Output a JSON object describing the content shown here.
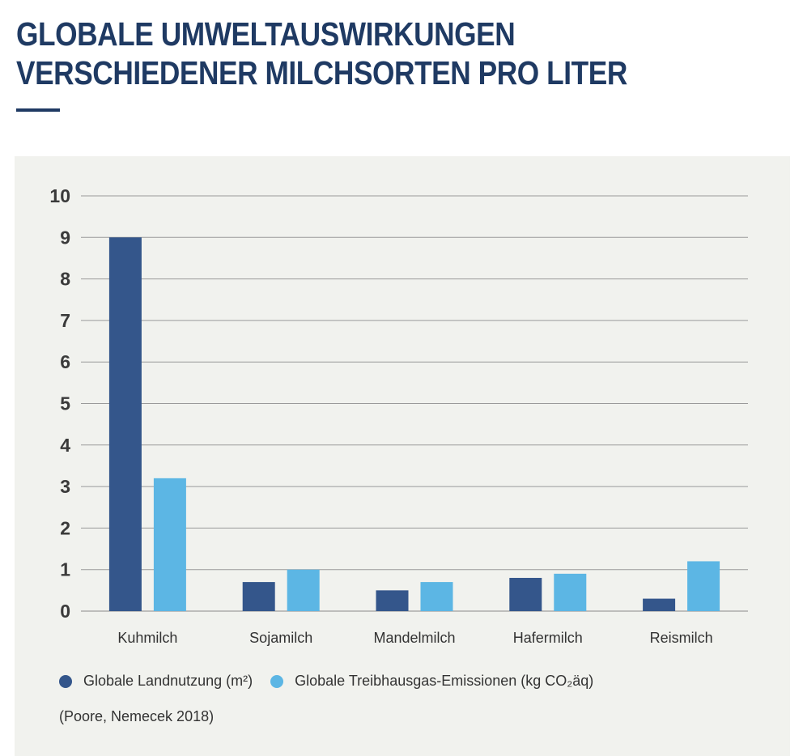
{
  "title": {
    "line1": "GLOBALE UMWELTAUSWIRKUNGEN",
    "line2": "VERSCHIEDENER MILCHSORTEN PRO LITER"
  },
  "colors": {
    "title": "#1f3a63",
    "series1": "#34568b",
    "series2": "#5cb6e4",
    "panel": "#f1f2ee"
  },
  "chart_data": {
    "type": "bar",
    "categories": [
      "Kuhmilch",
      "Sojamilch",
      "Mandelmilch",
      "Hafermilch",
      "Reismilch"
    ],
    "series": [
      {
        "name": "Globale Landnutzung (m²)",
        "values": [
          9.0,
          0.7,
          0.5,
          0.8,
          0.3
        ]
      },
      {
        "name": "Globale Treibhausgas-Emissionen (kg CO₂äq)",
        "values": [
          3.2,
          1.0,
          0.7,
          0.9,
          1.2
        ]
      }
    ],
    "ylim": [
      0,
      10
    ],
    "yticks": [
      "0",
      "1",
      "2",
      "3",
      "4",
      "5",
      "6",
      "7",
      "8",
      "9",
      "10"
    ],
    "grid": true,
    "legend_position": "bottom-left"
  },
  "legend": {
    "item1": "Globale Landnutzung (m²)",
    "item2": "Globale Treibhausgas-Emissionen (kg CO₂äq)"
  },
  "source": "(Poore, Nemecek 2018)"
}
